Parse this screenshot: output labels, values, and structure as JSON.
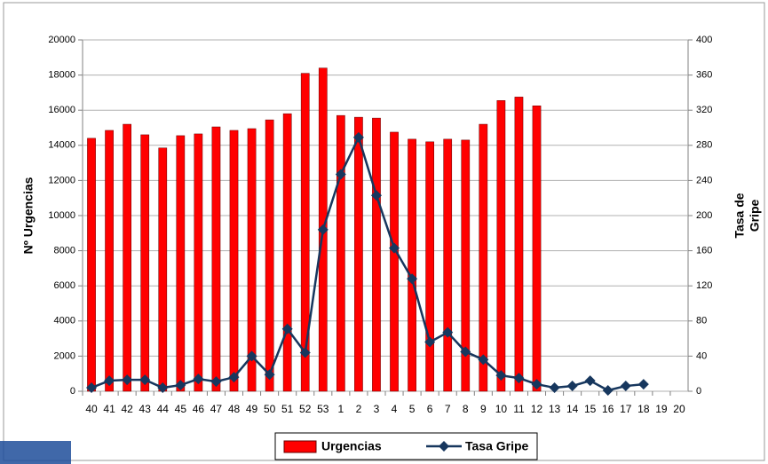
{
  "chart_data": {
    "type": "bar-line",
    "ylabel": "Nº Urgencias",
    "y2label": [
      "Tasa de",
      "Gripe"
    ],
    "categories": [
      "40",
      "41",
      "42",
      "43",
      "44",
      "45",
      "46",
      "47",
      "48",
      "49",
      "50",
      "51",
      "52",
      "53",
      "1",
      "2",
      "3",
      "4",
      "5",
      "6",
      "7",
      "8",
      "9",
      "10",
      "11",
      "12",
      "13",
      "14",
      "15",
      "16",
      "17",
      "18",
      "19",
      "20"
    ],
    "series": [
      {
        "name": "Urgencias",
        "type": "bar",
        "color": "#ff0000",
        "axis": "y",
        "values": [
          14400,
          14850,
          15200,
          14600,
          13850,
          14550,
          14650,
          15050,
          14850,
          14950,
          15450,
          15800,
          18100,
          18400,
          15700,
          15600,
          15550,
          14750,
          14350,
          14200,
          14350,
          14300,
          15200,
          16550,
          16750,
          16250,
          null,
          null,
          null,
          null,
          null,
          null,
          null,
          null
        ]
      },
      {
        "name": "Tasa Gripe",
        "type": "line",
        "color": "#17375e",
        "axis": "y2",
        "values": [
          4,
          12,
          13,
          13,
          4,
          7,
          14,
          11,
          16,
          40,
          19,
          71,
          44,
          184,
          247,
          289,
          223,
          163,
          128,
          56,
          67,
          45,
          36,
          18,
          15,
          8,
          4,
          6,
          12,
          1,
          6,
          8,
          null,
          null
        ]
      }
    ],
    "ylim": [
      0,
      20000
    ],
    "yticks": [
      0,
      2000,
      4000,
      6000,
      8000,
      10000,
      12000,
      14000,
      16000,
      18000,
      20000
    ],
    "y2lim": [
      0,
      400
    ],
    "y2ticks": [
      0,
      40,
      80,
      120,
      160,
      200,
      240,
      280,
      320,
      360,
      400
    ],
    "grid": true,
    "legend": "bottom"
  }
}
